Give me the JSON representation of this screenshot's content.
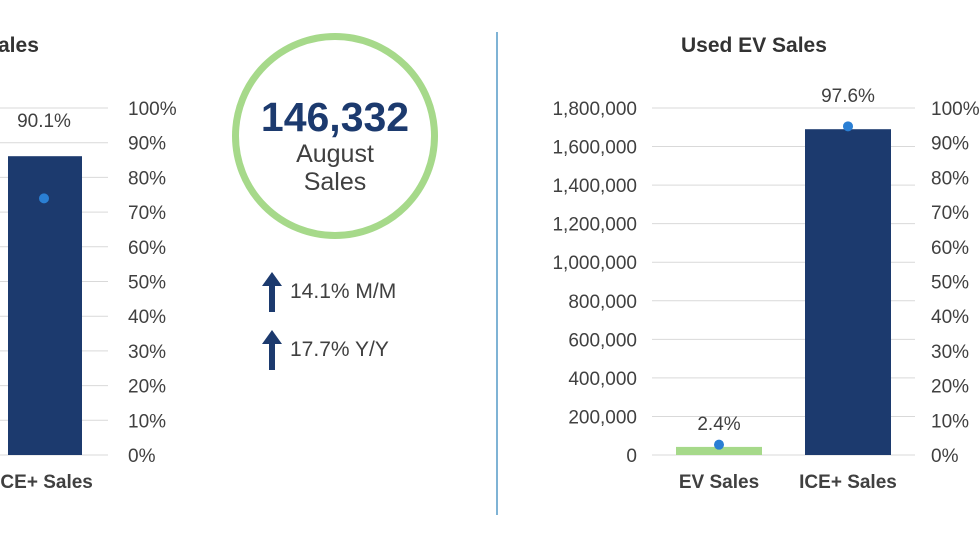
{
  "chart_data": [
    {
      "type": "bar",
      "title": "ales",
      "categories": [
        "ICE+ Sales"
      ],
      "series": [
        {
          "values": [
            1550000
          ],
          "color": "#1c3a6e"
        },
        {
          "values": [
            90.1
          ],
          "axis": "secondary",
          "marker": "dot",
          "color": "#2a7fd4"
        }
      ],
      "data_labels": [
        "90.1%"
      ],
      "y2lim": [
        0,
        100
      ],
      "y2ticks": [
        "100%",
        "90%",
        "80%",
        "70%",
        "60%",
        "50%",
        "40%",
        "30%",
        "20%",
        "10%",
        "0%"
      ]
    },
    {
      "type": "bar",
      "title": "Used EV Sales",
      "categories": [
        "EV Sales",
        "ICE+ Sales"
      ],
      "series": [
        {
          "values": [
            42000,
            1690000
          ],
          "colors": [
            "#a6d98a",
            "#1c3a6e"
          ]
        },
        {
          "values": [
            2.4,
            97.6
          ],
          "axis": "secondary",
          "marker": "dot",
          "color": "#2a7fd4"
        }
      ],
      "data_labels": [
        "2.4%",
        "97.6%"
      ],
      "ylim": [
        0,
        1800000
      ],
      "yticks": [
        "1,800,000",
        "1,600,000",
        "1,400,000",
        "1,200,000",
        "1,000,000",
        "800,000",
        "600,000",
        "400,000",
        "200,000",
        "0"
      ],
      "y2lim": [
        0,
        100
      ],
      "y2ticks": [
        "100%",
        "90%",
        "80%",
        "70%",
        "60%",
        "50%",
        "40%",
        "30%",
        "20%",
        "10%",
        "0%"
      ]
    }
  ],
  "stat": {
    "value": "146,332",
    "label_line1": "August",
    "label_line2": "Sales",
    "changes": [
      {
        "direction": "up",
        "icon": "arrow-up-icon",
        "text": "14.1% M/M"
      },
      {
        "direction": "up",
        "icon": "arrow-up-icon",
        "text": "17.7% Y/Y"
      }
    ],
    "accent_color": "#a6d98a",
    "value_color": "#1c3a6e"
  },
  "colors": {
    "divider": "#7fb3d5",
    "gridline": "#d9d9d9"
  }
}
